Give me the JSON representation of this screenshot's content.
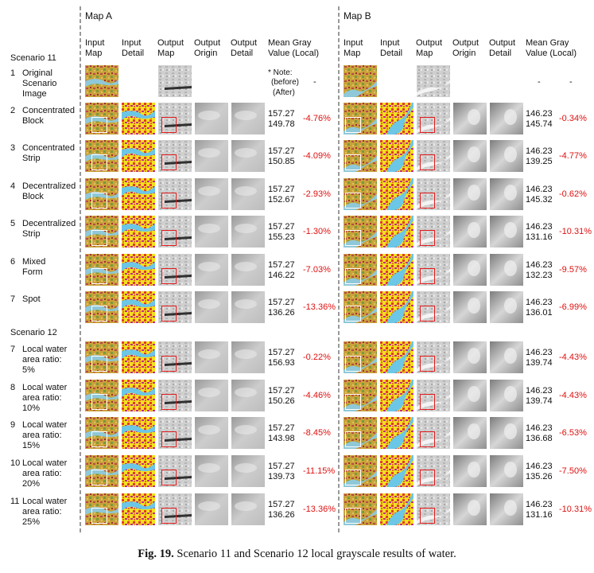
{
  "map_a": {
    "title": "Map A"
  },
  "map_b": {
    "title": "Map B"
  },
  "columns": [
    [
      "Input",
      "Map"
    ],
    [
      "Input",
      "Detail"
    ],
    [
      "Output",
      "Map"
    ],
    [
      "Output",
      "Origin"
    ],
    [
      "Output",
      "Detail"
    ],
    [
      "Mean Gray",
      "Value (Local)"
    ]
  ],
  "scenario11": "Scenario 11",
  "scenario12": "Scenario 12",
  "note": {
    "line1": "* Note:",
    "line2": "(before)",
    "line3": "(After)",
    "dash_a": "-",
    "dash_b1": "-",
    "dash_b2": "-"
  },
  "rows": [
    {
      "label": [
        "1",
        "Original",
        "Scenario",
        "Image"
      ]
    },
    {
      "label": [
        "2",
        "Concentrated",
        "Block"
      ],
      "a": [
        "157.27",
        "149.78",
        "-4.76%"
      ],
      "b": [
        "146.23",
        "145.74",
        "-0.34%"
      ]
    },
    {
      "label": [
        "3",
        "Concentrated",
        "Strip"
      ],
      "a": [
        "157.27",
        "150.85",
        "-4.09%"
      ],
      "b": [
        "146.23",
        "139.25",
        "-4.77%"
      ]
    },
    {
      "label": [
        "4",
        "Decentralized",
        "Block"
      ],
      "a": [
        "157.27",
        "152.67",
        "-2.93%"
      ],
      "b": [
        "146.23",
        "145.32",
        "-0.62%"
      ]
    },
    {
      "label": [
        "5",
        "Decentralized",
        "Strip"
      ],
      "a": [
        "157.27",
        "155.23",
        "-1.30%"
      ],
      "b": [
        "146.23",
        "131.16",
        "-10.31%"
      ]
    },
    {
      "label": [
        "6",
        "Mixed",
        "Form"
      ],
      "a": [
        "157.27",
        "146.22",
        "-7.03%"
      ],
      "b": [
        "146.23",
        "132.23",
        "-9.57%"
      ]
    },
    {
      "label": [
        "7",
        "Spot"
      ],
      "a": [
        "157.27",
        "136.26",
        "-13.36%"
      ],
      "b": [
        "146.23",
        "136.01",
        "-6.99%"
      ]
    },
    {
      "label": [
        "7",
        "Local water",
        "area ratio:",
        "5%"
      ],
      "a": [
        "157.27",
        "156.93",
        "-0.22%"
      ],
      "b": [
        "146.23",
        "139.74",
        "-4.43%"
      ]
    },
    {
      "label": [
        "8",
        "Local water",
        "area ratio:",
        "10%"
      ],
      "a": [
        "157.27",
        "150.26",
        "-4.46%"
      ],
      "b": [
        "146.23",
        "139.74",
        "-4.43%"
      ]
    },
    {
      "label": [
        "9",
        "Local water",
        "area ratio:",
        "15%"
      ],
      "a": [
        "157.27",
        "143.98",
        "-8.45%"
      ],
      "b": [
        "146.23",
        "136.68",
        "-6.53%"
      ]
    },
    {
      "label": [
        "10",
        "Local water",
        "area ratio:",
        "20%"
      ],
      "a": [
        "157.27",
        "139.73",
        "-11.15%"
      ],
      "b": [
        "146.23",
        "135.26",
        "-7.50%"
      ]
    },
    {
      "label": [
        "11",
        "Local water",
        "area ratio:",
        "25%"
      ],
      "a": [
        "157.27",
        "136.26",
        "-13.36%"
      ],
      "b": [
        "146.23",
        "131.16",
        "-10.31%"
      ]
    }
  ],
  "caption": {
    "bold": "Fig. 19.",
    "text": "Scenario 11 and Scenario 12 local grayscale results of water."
  }
}
